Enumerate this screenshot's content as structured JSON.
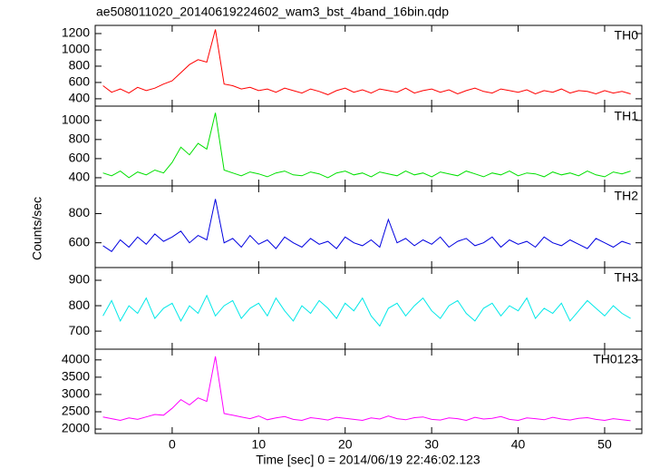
{
  "title": "ae508011020_20140619224602_wam3_bst_4band_16bin.qdp",
  "xlabel": "Time [sec] 0 = 2014/06/19 22:46:02.123",
  "ylabel": "Counts/sec",
  "chart_data": [
    {
      "type": "line",
      "x": [
        -8,
        -7,
        -6,
        -5,
        -4,
        -3,
        -2,
        -1,
        0,
        1,
        2,
        3,
        4,
        5,
        6,
        7,
        8,
        9,
        10,
        11,
        12,
        13,
        14,
        15,
        16,
        17,
        18,
        19,
        20,
        21,
        22,
        23,
        24,
        25,
        26,
        27,
        28,
        29,
        30,
        31,
        32,
        33,
        34,
        35,
        36,
        37,
        38,
        39,
        40,
        41,
        42,
        43,
        44,
        45,
        46,
        47,
        48,
        49,
        50,
        51,
        52,
        53
      ],
      "xlim": [
        -8.9,
        54.3
      ],
      "xticks": [
        0,
        10,
        20,
        30,
        40,
        50
      ],
      "ylim": [
        310,
        1300
      ],
      "yticks": [
        400,
        600,
        800,
        1000,
        1200
      ],
      "series": [
        {
          "name": "TH0",
          "color": "#ff0000",
          "values": [
            560,
            480,
            520,
            470,
            540,
            500,
            530,
            580,
            620,
            720,
            820,
            880,
            850,
            1250,
            580,
            560,
            520,
            540,
            500,
            520,
            480,
            530,
            500,
            470,
            520,
            490,
            450,
            500,
            530,
            480,
            510,
            470,
            520,
            500,
            480,
            530,
            470,
            500,
            520,
            480,
            510,
            460,
            500,
            530,
            490,
            470,
            520,
            500,
            480,
            510,
            460,
            500,
            480,
            520,
            470,
            500,
            490,
            460,
            500,
            470,
            490,
            460
          ]
        }
      ]
    },
    {
      "type": "line",
      "x": [
        -8,
        -7,
        -6,
        -5,
        -4,
        -3,
        -2,
        -1,
        0,
        1,
        2,
        3,
        4,
        5,
        6,
        7,
        8,
        9,
        10,
        11,
        12,
        13,
        14,
        15,
        16,
        17,
        18,
        19,
        20,
        21,
        22,
        23,
        24,
        25,
        26,
        27,
        28,
        29,
        30,
        31,
        32,
        33,
        34,
        35,
        36,
        37,
        38,
        39,
        40,
        41,
        42,
        43,
        44,
        45,
        46,
        47,
        48,
        49,
        50,
        51,
        52,
        53
      ],
      "xlim": [
        -8.9,
        54.3
      ],
      "xticks": [
        0,
        10,
        20,
        30,
        40,
        50
      ],
      "ylim": [
        314,
        1150
      ],
      "yticks": [
        400,
        600,
        800,
        1000
      ],
      "series": [
        {
          "name": "TH1",
          "color": "#00e000",
          "values": [
            450,
            420,
            470,
            400,
            460,
            430,
            480,
            450,
            560,
            720,
            640,
            760,
            700,
            1080,
            480,
            450,
            420,
            460,
            440,
            410,
            450,
            470,
            430,
            420,
            460,
            440,
            400,
            450,
            470,
            430,
            450,
            410,
            460,
            440,
            420,
            470,
            430,
            450,
            410,
            460,
            440,
            420,
            470,
            440,
            410,
            450,
            430,
            470,
            420,
            450,
            440,
            410,
            460,
            430,
            450,
            420,
            470,
            430,
            410,
            460,
            440,
            470
          ]
        }
      ]
    },
    {
      "type": "line",
      "x": [
        -8,
        -7,
        -6,
        -5,
        -4,
        -3,
        -2,
        -1,
        0,
        1,
        2,
        3,
        4,
        5,
        6,
        7,
        8,
        9,
        10,
        11,
        12,
        13,
        14,
        15,
        16,
        17,
        18,
        19,
        20,
        21,
        22,
        23,
        24,
        25,
        26,
        27,
        28,
        29,
        30,
        31,
        32,
        33,
        34,
        35,
        36,
        37,
        38,
        39,
        40,
        41,
        42,
        43,
        44,
        45,
        46,
        47,
        48,
        49,
        50,
        51,
        52,
        53
      ],
      "xlim": [
        -8.9,
        54.3
      ],
      "xticks": [
        0,
        10,
        20,
        30,
        40,
        50
      ],
      "ylim": [
        430,
        990
      ],
      "yticks": [
        600,
        800
      ],
      "series": [
        {
          "name": "TH2",
          "color": "#0000e0",
          "values": [
            580,
            540,
            620,
            570,
            640,
            590,
            660,
            610,
            640,
            680,
            600,
            650,
            620,
            900,
            600,
            630,
            570,
            650,
            590,
            620,
            560,
            640,
            600,
            570,
            630,
            590,
            610,
            560,
            640,
            600,
            580,
            620,
            570,
            760,
            600,
            630,
            580,
            620,
            590,
            640,
            570,
            610,
            630,
            580,
            600,
            640,
            570,
            620,
            590,
            610,
            570,
            640,
            600,
            580,
            620,
            590,
            560,
            630,
            600,
            570,
            610,
            590
          ]
        }
      ]
    },
    {
      "type": "line",
      "x": [
        -8,
        -7,
        -6,
        -5,
        -4,
        -3,
        -2,
        -1,
        0,
        1,
        2,
        3,
        4,
        5,
        6,
        7,
        8,
        9,
        10,
        11,
        12,
        13,
        14,
        15,
        16,
        17,
        18,
        19,
        20,
        21,
        22,
        23,
        24,
        25,
        26,
        27,
        28,
        29,
        30,
        31,
        32,
        33,
        34,
        35,
        36,
        37,
        38,
        39,
        40,
        41,
        42,
        43,
        44,
        45,
        46,
        47,
        48,
        49,
        50,
        51,
        52,
        53
      ],
      "xlim": [
        -8.9,
        54.3
      ],
      "xticks": [
        0,
        10,
        20,
        30,
        40,
        50
      ],
      "ylim": [
        629,
        950
      ],
      "yticks": [
        700,
        800,
        900
      ],
      "series": [
        {
          "name": "TH3",
          "color": "#00e8e8",
          "values": [
            760,
            820,
            740,
            800,
            770,
            830,
            750,
            790,
            810,
            740,
            800,
            770,
            840,
            760,
            800,
            820,
            750,
            790,
            810,
            760,
            830,
            780,
            740,
            800,
            770,
            820,
            790,
            750,
            810,
            780,
            830,
            760,
            720,
            790,
            810,
            760,
            800,
            830,
            780,
            750,
            800,
            820,
            770,
            740,
            790,
            810,
            760,
            800,
            780,
            830,
            750,
            790,
            770,
            810,
            740,
            780,
            820,
            790,
            760,
            800,
            770,
            750
          ]
        }
      ]
    },
    {
      "type": "line",
      "x": [
        -8,
        -7,
        -6,
        -5,
        -4,
        -3,
        -2,
        -1,
        0,
        1,
        2,
        3,
        4,
        5,
        6,
        7,
        8,
        9,
        10,
        11,
        12,
        13,
        14,
        15,
        16,
        17,
        18,
        19,
        20,
        21,
        22,
        23,
        24,
        25,
        26,
        27,
        28,
        29,
        30,
        31,
        32,
        33,
        34,
        35,
        36,
        37,
        38,
        39,
        40,
        41,
        42,
        43,
        44,
        45,
        46,
        47,
        48,
        49,
        50,
        51,
        52,
        53
      ],
      "xlim": [
        -8.9,
        54.3
      ],
      "xticks": [
        0,
        10,
        20,
        30,
        40,
        50
      ],
      "ylim": [
        1870,
        4310
      ],
      "yticks": [
        2000,
        2500,
        3000,
        3500,
        4000
      ],
      "series": [
        {
          "name": "TH0123",
          "color": "#ff00ff",
          "values": [
            2350,
            2300,
            2250,
            2320,
            2280,
            2350,
            2420,
            2400,
            2600,
            2850,
            2700,
            2900,
            2800,
            4100,
            2450,
            2400,
            2350,
            2300,
            2380,
            2270,
            2320,
            2360,
            2280,
            2250,
            2330,
            2300,
            2260,
            2340,
            2310,
            2280,
            2250,
            2320,
            2290,
            2380,
            2300,
            2270,
            2330,
            2350,
            2280,
            2260,
            2320,
            2300,
            2250,
            2340,
            2290,
            2310,
            2360,
            2280,
            2250,
            2320,
            2300,
            2270,
            2340,
            2290,
            2260,
            2310,
            2330,
            2280,
            2250,
            2300,
            2270,
            2240
          ]
        }
      ]
    }
  ]
}
